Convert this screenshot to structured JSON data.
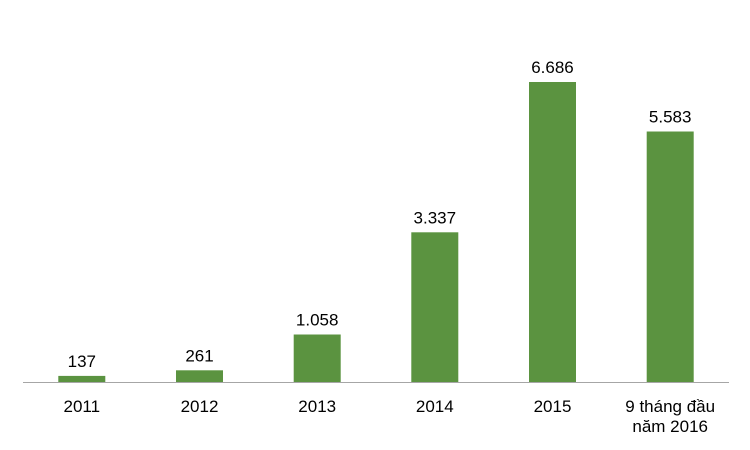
{
  "chart_data": {
    "type": "bar",
    "categories": [
      "2011",
      "2012",
      "2013",
      "2014",
      "2015",
      "9 tháng đầu năm 2016"
    ],
    "category_lines": [
      [
        "2011"
      ],
      [
        "2012"
      ],
      [
        "2013"
      ],
      [
        "2014"
      ],
      [
        "2015"
      ],
      [
        "9 tháng đầu",
        "năm 2016"
      ]
    ],
    "values": [
      137,
      261,
      1058,
      3337,
      6686,
      5583
    ],
    "value_labels": [
      "137",
      "261",
      "1.058",
      "3.337",
      "6.686",
      "5.583"
    ],
    "title": "",
    "xlabel": "",
    "ylabel": "",
    "ylim": [
      0,
      7000
    ],
    "grid": false,
    "colors": {
      "bar": "#5b9340",
      "axis": "#a6a6a6"
    }
  }
}
